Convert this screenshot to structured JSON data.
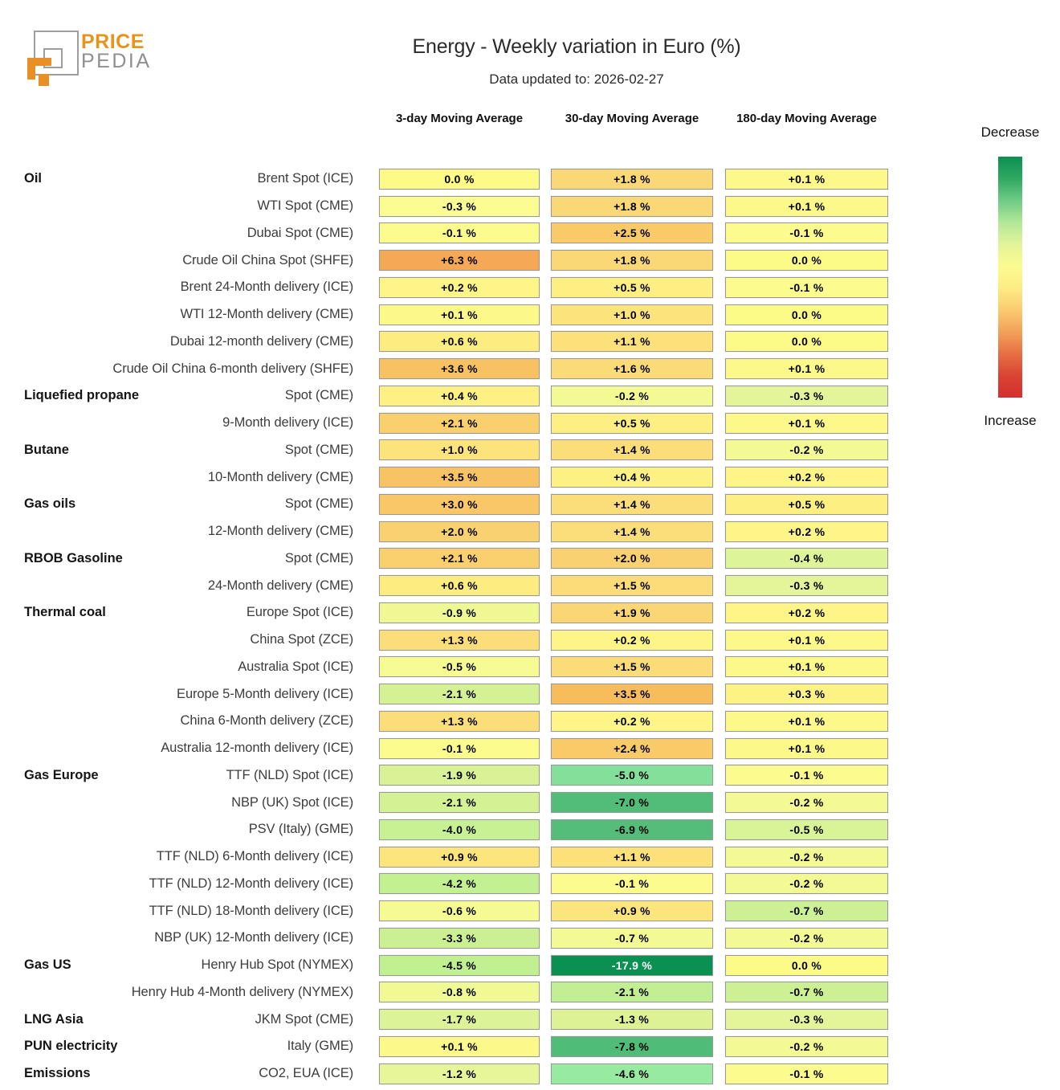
{
  "logo": {
    "brand_line1": "PRICE",
    "brand_line2": "PEDIA"
  },
  "chart_data": {
    "type": "heatmap",
    "title": "Energy - Weekly variation in Euro (%)",
    "subtitle": "Data updated to: 2026-02-27",
    "unit": "%",
    "columns": [
      "3-day Moving Average",
      "30-day Moving Average",
      "180-day Moving Average"
    ],
    "legend": {
      "top": "Decrease",
      "bottom": "Increase",
      "gradient_top_to_bottom": [
        "#0C9050",
        "#2FA862",
        "#6FCB87",
        "#B2E797",
        "#E3F49B",
        "#FBFB8F",
        "#FDEC84",
        "#FACB70",
        "#F3A159",
        "#E76F44",
        "#D94432",
        "#D32F2F"
      ]
    },
    "rows": [
      {
        "category": "Oil",
        "label": "Brent Spot (ICE)",
        "values": [
          0.0,
          1.8,
          0.1
        ],
        "display": [
          "0.0 %",
          "+1.8 %",
          "+0.1 %"
        ],
        "colors": [
          "#FCFB88",
          "#FBD876",
          "#FDF88A"
        ]
      },
      {
        "category": "",
        "label": "WTI Spot (CME)",
        "values": [
          -0.3,
          1.8,
          0.1
        ],
        "display": [
          "-0.3 %",
          "+1.8 %",
          "+0.1 %"
        ],
        "colors": [
          "#FBFC92",
          "#FBD876",
          "#FDF88A"
        ]
      },
      {
        "category": "",
        "label": "Dubai Spot (CME)",
        "values": [
          -0.1,
          2.5,
          -0.1
        ],
        "display": [
          "-0.1 %",
          "+2.5 %",
          "-0.1 %"
        ],
        "colors": [
          "#FCFC8E",
          "#F9CA67",
          "#FCFC8E"
        ]
      },
      {
        "category": "",
        "label": "Crude Oil China Spot (SHFE)",
        "values": [
          6.3,
          1.8,
          0.0
        ],
        "display": [
          "+6.3 %",
          "+1.8 %",
          "0.0 %"
        ],
        "colors": [
          "#F5A855",
          "#FBD876",
          "#FCFB88"
        ]
      },
      {
        "category": "",
        "label": "Brent 24-Month delivery (ICE)",
        "values": [
          0.2,
          0.5,
          -0.1
        ],
        "display": [
          "+0.2 %",
          "+0.5 %",
          "-0.1 %"
        ],
        "colors": [
          "#FDF587",
          "#FDEF81",
          "#FCFC8E"
        ]
      },
      {
        "category": "",
        "label": "WTI 12-Month delivery (CME)",
        "values": [
          0.1,
          1.0,
          0.0
        ],
        "display": [
          "+0.1 %",
          "+1.0 %",
          "0.0 %"
        ],
        "colors": [
          "#FDF88A",
          "#FCE37B",
          "#FCFB88"
        ]
      },
      {
        "category": "",
        "label": "Dubai 12-month delivery (CME)",
        "values": [
          0.6,
          1.1,
          0.0
        ],
        "display": [
          "+0.6 %",
          "+1.1 %",
          "0.0 %"
        ],
        "colors": [
          "#FDEC7F",
          "#FCE17A",
          "#FCFB88"
        ]
      },
      {
        "category": "",
        "label": "Crude Oil China 6-month delivery (SHFE)",
        "values": [
          3.6,
          1.6,
          0.1
        ],
        "display": [
          "+3.6 %",
          "+1.6 %",
          "+0.1 %"
        ],
        "colors": [
          "#F8C263",
          "#FBDB77",
          "#FDF88A"
        ]
      },
      {
        "category": "Liquefied propane",
        "label": "Spot (CME)",
        "values": [
          0.4,
          -0.2,
          -0.3
        ],
        "display": [
          "+0.4 %",
          "-0.2 %",
          "-0.3 %"
        ],
        "colors": [
          "#FDF184",
          "#F4FA93",
          "#E4F599"
        ]
      },
      {
        "category": "",
        "label": "9-Month delivery (ICE)",
        "values": [
          2.1,
          0.5,
          0.1
        ],
        "display": [
          "+2.1 %",
          "+0.5 %",
          "+0.1 %"
        ],
        "colors": [
          "#FACF6E",
          "#FDEF81",
          "#FDF88A"
        ]
      },
      {
        "category": "Butane",
        "label": "Spot (CME)",
        "values": [
          1.0,
          1.4,
          -0.2
        ],
        "display": [
          "+1.0 %",
          "+1.4 %",
          "-0.2 %"
        ],
        "colors": [
          "#FCE37B",
          "#FBDE79",
          "#F4FA93"
        ]
      },
      {
        "category": "",
        "label": "10-Month delivery (CME)",
        "values": [
          3.5,
          0.4,
          0.2
        ],
        "display": [
          "+3.5 %",
          "+0.4 %",
          "+0.2 %"
        ],
        "colors": [
          "#F8C364",
          "#FDF184",
          "#FDF587"
        ]
      },
      {
        "category": "Gas oils",
        "label": "Spot (CME)",
        "values": [
          3.0,
          1.4,
          0.5
        ],
        "display": [
          "+3.0 %",
          "+1.4 %",
          "+0.5 %"
        ],
        "colors": [
          "#F9C768",
          "#FBDE79",
          "#FDEF81"
        ]
      },
      {
        "category": "",
        "label": "12-Month delivery (CME)",
        "values": [
          2.0,
          1.4,
          0.2
        ],
        "display": [
          "+2.0 %",
          "+1.4 %",
          "+0.2 %"
        ],
        "colors": [
          "#FAD170",
          "#FBDE79",
          "#FDF587"
        ]
      },
      {
        "category": "RBOB Gasoline",
        "label": "Spot (CME)",
        "values": [
          2.1,
          2.0,
          -0.4
        ],
        "display": [
          "+2.1 %",
          "+2.0 %",
          "-0.4 %"
        ],
        "colors": [
          "#FACF6E",
          "#FAD170",
          "#DEF498"
        ]
      },
      {
        "category": "",
        "label": "24-Month delivery (CME)",
        "values": [
          0.6,
          1.5,
          -0.3
        ],
        "display": [
          "+0.6 %",
          "+1.5 %",
          "-0.3 %"
        ],
        "colors": [
          "#FDEC7F",
          "#FBDC78",
          "#E4F599"
        ]
      },
      {
        "category": "Thermal coal",
        "label": "Europe Spot (ICE)",
        "values": [
          -0.9,
          1.9,
          0.2
        ],
        "display": [
          "-0.9 %",
          "+1.9 %",
          "+0.2 %"
        ],
        "colors": [
          "#EFF892",
          "#FAD674",
          "#FDF587"
        ]
      },
      {
        "category": "",
        "label": "China Spot (ZCE)",
        "values": [
          1.3,
          0.2,
          0.1
        ],
        "display": [
          "+1.3 %",
          "+0.2 %",
          "+0.1 %"
        ],
        "colors": [
          "#FBDE79",
          "#FDF587",
          "#FDF88A"
        ]
      },
      {
        "category": "",
        "label": "Australia Spot (ICE)",
        "values": [
          -0.5,
          1.5,
          0.1
        ],
        "display": [
          "-0.5 %",
          "+1.5 %",
          "+0.1 %"
        ],
        "colors": [
          "#F7FB94",
          "#FBDC78",
          "#FDF88A"
        ]
      },
      {
        "category": "",
        "label": "Europe 5-Month delivery (ICE)",
        "values": [
          -2.1,
          3.5,
          0.3
        ],
        "display": [
          "-2.1 %",
          "+3.5 %",
          "+0.3 %"
        ],
        "colors": [
          "#D4F194",
          "#F7BC5C",
          "#FDF385"
        ]
      },
      {
        "category": "",
        "label": "China 6-Month delivery (ZCE)",
        "values": [
          1.3,
          0.2,
          0.1
        ],
        "display": [
          "+1.3 %",
          "+0.2 %",
          "+0.1 %"
        ],
        "colors": [
          "#FBDE79",
          "#FDF587",
          "#FDF88A"
        ]
      },
      {
        "category": "",
        "label": "Australia 12-month delivery (ICE)",
        "values": [
          -0.1,
          2.4,
          0.1
        ],
        "display": [
          "-0.1 %",
          "+2.4 %",
          "+0.1 %"
        ],
        "colors": [
          "#FCFC8E",
          "#F9CB68",
          "#FDF88A"
        ]
      },
      {
        "category": "Gas Europe",
        "label": "TTF (NLD) Spot (ICE)",
        "values": [
          -1.9,
          -5.0,
          -0.1
        ],
        "display": [
          "-1.9 %",
          "-5.0 %",
          "-0.1 %"
        ],
        "colors": [
          "#D9F296",
          "#82E09B",
          "#FCFC8E"
        ]
      },
      {
        "category": "",
        "label": "NBP (UK) Spot (ICE)",
        "values": [
          -2.1,
          -7.0,
          -0.2
        ],
        "display": [
          "-2.1 %",
          "-7.0 %",
          "-0.2 %"
        ],
        "colors": [
          "#D4F194",
          "#52BC79",
          "#F4FA93"
        ]
      },
      {
        "category": "",
        "label": "PSV (Italy) (GME)",
        "values": [
          -4.0,
          -6.9,
          -0.5
        ],
        "display": [
          "-4.0 %",
          "-6.9 %",
          "-0.5 %"
        ],
        "colors": [
          "#C6F293",
          "#55BD7A",
          "#D9F397"
        ]
      },
      {
        "category": "",
        "label": "TTF (NLD) 6-Month delivery (ICE)",
        "values": [
          0.9,
          1.1,
          -0.2
        ],
        "display": [
          "+0.9 %",
          "+1.1 %",
          "-0.2 %"
        ],
        "colors": [
          "#FCE57C",
          "#FCE17A",
          "#F4FA93"
        ]
      },
      {
        "category": "",
        "label": "TTF (NLD) 12-Month delivery (ICE)",
        "values": [
          -4.2,
          -0.1,
          -0.2
        ],
        "display": [
          "-4.2 %",
          "-0.1 %",
          "-0.2 %"
        ],
        "colors": [
          "#C3F192",
          "#FCFC8E",
          "#F4FA93"
        ]
      },
      {
        "category": "",
        "label": "TTF (NLD) 18-Month delivery (ICE)",
        "values": [
          -0.6,
          0.9,
          -0.7
        ],
        "display": [
          "-0.6 %",
          "+0.9 %",
          "-0.7 %"
        ],
        "colors": [
          "#F5FA93",
          "#FCE57C",
          "#CDF094"
        ]
      },
      {
        "category": "",
        "label": "NBP (UK) 12-Month delivery (ICE)",
        "values": [
          -3.3,
          -0.7,
          -0.2
        ],
        "display": [
          "-3.3 %",
          "-0.7 %",
          "-0.2 %"
        ],
        "colors": [
          "#CBF091",
          "#F3FA93",
          "#F4FA93"
        ]
      },
      {
        "category": "Gas US",
        "label": "Henry Hub Spot (NYMEX)",
        "values": [
          -4.5,
          -17.9,
          0.0
        ],
        "display": [
          "-4.5 %",
          "-17.9 %",
          "0.0 %"
        ],
        "colors": [
          "#C0F090",
          "#0A9152",
          "#FCFB88"
        ],
        "text_colors": [
          null,
          "#ffffff",
          null
        ]
      },
      {
        "category": "",
        "label": "Henry Hub 4-Month delivery (NYMEX)",
        "values": [
          -0.8,
          -2.1,
          -0.7
        ],
        "display": [
          "-0.8 %",
          "-2.1 %",
          "-0.7 %"
        ],
        "colors": [
          "#F0F993",
          "#C2EF93",
          "#CDF094"
        ]
      },
      {
        "category": "LNG Asia",
        "label": "JKM Spot (CME)",
        "values": [
          -1.7,
          -1.3,
          -0.3
        ],
        "display": [
          "-1.7 %",
          "-1.3 %",
          "-0.3 %"
        ],
        "colors": [
          "#DDF397",
          "#DDF294",
          "#E4F599"
        ]
      },
      {
        "category": "PUN electricity",
        "label": "Italy (GME)",
        "values": [
          0.1,
          -7.8,
          -0.2
        ],
        "display": [
          "+0.1 %",
          "-7.8 %",
          "-0.2 %"
        ],
        "colors": [
          "#FDF88A",
          "#4FBC78",
          "#F4FA93"
        ]
      },
      {
        "category": "Emissions",
        "label": "CO2, EUA (ICE)",
        "values": [
          -1.2,
          -4.6,
          -0.1
        ],
        "display": [
          "-1.2 %",
          "-4.6 %",
          "-0.1 %"
        ],
        "colors": [
          "#E7F699",
          "#97EBA0",
          "#FCFC8E"
        ]
      }
    ]
  }
}
